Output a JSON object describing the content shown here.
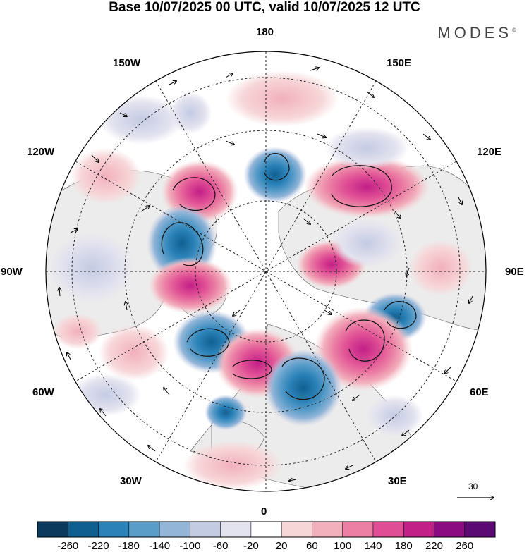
{
  "title": "Base 10/07/2025 00 UTC, valid 10/07/2025 12 UTC",
  "brand": "MODES",
  "brand_mark": "©",
  "longitude_labels": {
    "top": "180",
    "bottom": "0",
    "left": "90W",
    "right": "90E",
    "upper_left_1": "150W",
    "upper_left_2": "120W",
    "upper_right_1": "150E",
    "upper_right_2": "120E",
    "lower_left_1": "60W",
    "lower_left_2": "30W",
    "lower_right_1": "60E",
    "lower_right_2": "30E"
  },
  "vector_scale_label": "30",
  "colorbar": {
    "ticks": [
      "-260",
      "-220",
      "-180",
      "-140",
      "-100",
      "-60",
      "-20",
      "20",
      "60",
      "100",
      "140",
      "180",
      "220",
      "260"
    ],
    "colors": [
      "#0c3a5c",
      "#105f91",
      "#2a82b8",
      "#5b9dc9",
      "#92b5d8",
      "#c3cbe3",
      "#e3e2ef",
      "#ffffff",
      "#f7d6d8",
      "#f2b0bd",
      "#eb7fa4",
      "#e04f95",
      "#c21f87",
      "#8a0c80",
      "#5a0a72"
    ]
  },
  "colors": {
    "land": "#ececec",
    "negative_strong": "#105f91",
    "positive_strong": "#c21f87"
  }
}
